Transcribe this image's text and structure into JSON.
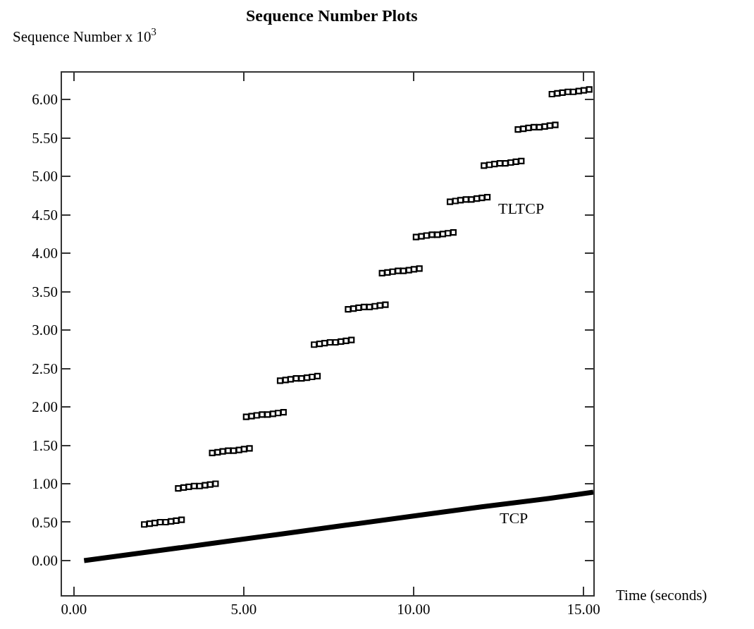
{
  "chart_data": {
    "type": "scatter",
    "title": "Sequence Number Plots",
    "xlabel": "Time (seconds)",
    "ylabel": "Sequence Number x 10$^{3}$",
    "xlim": [
      -0.35,
      15.29
    ],
    "ylim": [
      -0.45,
      6.35
    ],
    "xticks": [
      {
        "value": 0,
        "label": "0.00"
      },
      {
        "value": 5,
        "label": "5.00"
      },
      {
        "value": 10,
        "label": "10.00"
      },
      {
        "value": 15,
        "label": "15.00"
      }
    ],
    "yticks": [
      {
        "value": 0,
        "label": "0.00"
      },
      {
        "value": 0.5,
        "label": "0.50"
      },
      {
        "value": 1,
        "label": "1.00"
      },
      {
        "value": 1.5,
        "label": "1.50"
      },
      {
        "value": 2,
        "label": "2.00"
      },
      {
        "value": 2.5,
        "label": "2.50"
      },
      {
        "value": 3,
        "label": "3.00"
      },
      {
        "value": 3.5,
        "label": "3.50"
      },
      {
        "value": 4,
        "label": "4.00"
      },
      {
        "value": 4.5,
        "label": "4.50"
      },
      {
        "value": 5,
        "label": "5.00"
      },
      {
        "value": 5.5,
        "label": "5.50"
      },
      {
        "value": 6,
        "label": "6.00"
      }
    ],
    "legend": false,
    "series": [
      {
        "name": "TLTCP",
        "marker": "square",
        "color": "#000000",
        "x": [
          2.07,
          2.23,
          2.38,
          2.54,
          2.7,
          2.86,
          3.01,
          3.17,
          3.07,
          3.23,
          3.38,
          3.54,
          3.7,
          3.86,
          4.01,
          4.17,
          4.07,
          4.23,
          4.38,
          4.54,
          4.7,
          4.86,
          5.01,
          5.17,
          5.07,
          5.23,
          5.38,
          5.54,
          5.7,
          5.86,
          6.01,
          6.17,
          6.07,
          6.23,
          6.38,
          6.54,
          6.7,
          6.86,
          7.01,
          7.17,
          7.07,
          7.23,
          7.38,
          7.54,
          7.7,
          7.86,
          8.01,
          8.17,
          8.07,
          8.23,
          8.38,
          8.54,
          8.7,
          8.86,
          9.01,
          9.17,
          9.07,
          9.23,
          9.38,
          9.54,
          9.7,
          9.86,
          10.01,
          10.17,
          10.07,
          10.23,
          10.38,
          10.54,
          10.7,
          10.86,
          11.01,
          11.17,
          11.07,
          11.23,
          11.38,
          11.54,
          11.7,
          11.86,
          12.01,
          12.17,
          12.07,
          12.23,
          12.38,
          12.54,
          12.7,
          12.86,
          13.01,
          13.17,
          13.07,
          13.23,
          13.38,
          13.54,
          13.7,
          13.86,
          14.01,
          14.17,
          14.07,
          14.23,
          14.38,
          14.54,
          14.7,
          14.86,
          15.01,
          15.17
        ],
        "values": [
          0.47,
          0.48,
          0.49,
          0.5,
          0.5,
          0.51,
          0.52,
          0.53,
          0.94,
          0.95,
          0.96,
          0.97,
          0.97,
          0.98,
          0.99,
          1.0,
          1.4,
          1.41,
          1.42,
          1.43,
          1.43,
          1.44,
          1.45,
          1.46,
          1.87,
          1.88,
          1.89,
          1.9,
          1.9,
          1.91,
          1.92,
          1.93,
          2.34,
          2.35,
          2.36,
          2.37,
          2.37,
          2.38,
          2.39,
          2.4,
          2.81,
          2.82,
          2.83,
          2.84,
          2.84,
          2.85,
          2.86,
          2.87,
          3.27,
          3.28,
          3.29,
          3.3,
          3.3,
          3.31,
          3.32,
          3.33,
          3.74,
          3.75,
          3.76,
          3.77,
          3.77,
          3.78,
          3.79,
          3.8,
          4.21,
          4.22,
          4.23,
          4.24,
          4.24,
          4.25,
          4.26,
          4.27,
          4.67,
          4.68,
          4.69,
          4.7,
          4.7,
          4.71,
          4.72,
          4.73,
          5.14,
          5.15,
          5.16,
          5.17,
          5.17,
          5.18,
          5.19,
          5.2,
          5.61,
          5.62,
          5.63,
          5.64,
          5.64,
          5.65,
          5.66,
          5.67,
          6.07,
          6.08,
          6.09,
          6.1,
          6.1,
          6.11,
          6.12,
          6.13
        ]
      },
      {
        "name": "TCP",
        "type": "line",
        "marker": "none",
        "color": "#000000",
        "x": [
          0.3,
          2,
          4,
          6,
          8,
          10,
          12,
          14,
          15.29
        ],
        "values": [
          0.0,
          0.1,
          0.22,
          0.34,
          0.46,
          0.58,
          0.7,
          0.81,
          0.89
        ]
      }
    ]
  }
}
